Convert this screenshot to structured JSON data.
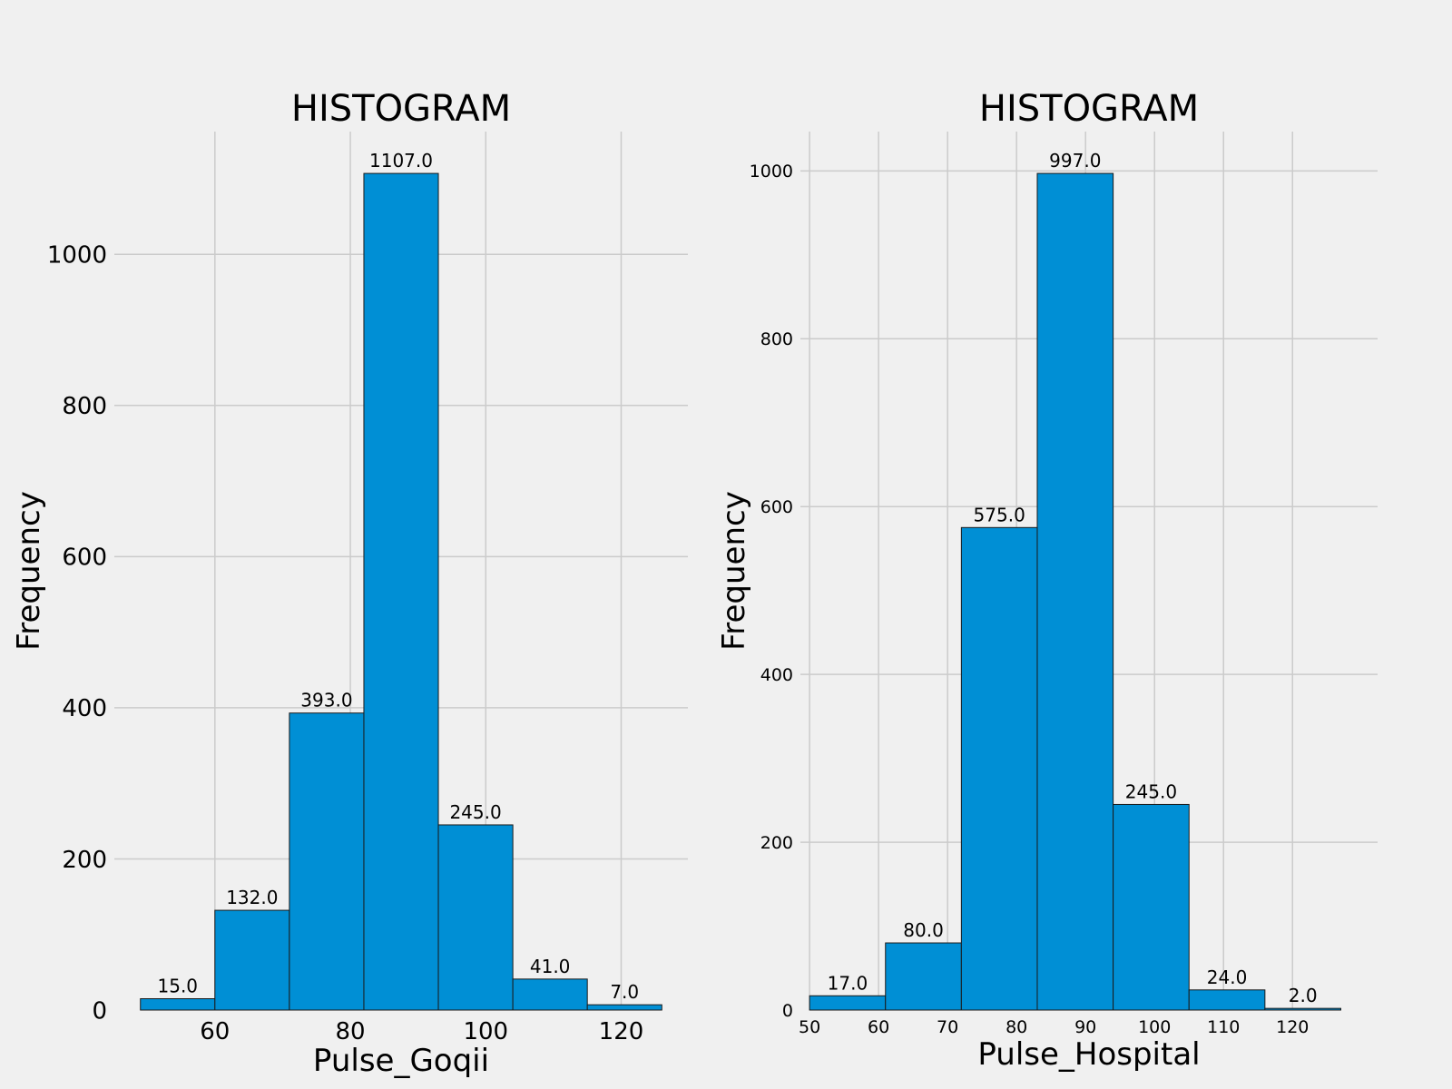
{
  "chart_data": [
    {
      "type": "bar",
      "title": "HISTOGRAM",
      "xlabel": "Pulse_Goqii",
      "ylabel": "Frequency",
      "bin_edges": [
        49,
        60,
        71,
        82,
        93,
        104,
        115,
        126
      ],
      "values": [
        15,
        132,
        393,
        1107,
        245,
        41,
        7
      ],
      "data_labels": [
        "15.0",
        "132.0",
        "393.0",
        "1107.0",
        "245.0",
        "41.0",
        "7.0"
      ],
      "x_ticks": [
        60,
        80,
        100,
        120
      ],
      "x_tick_labels": [
        "60",
        "80",
        "100",
        "120"
      ],
      "y_ticks": [
        0,
        200,
        400,
        600,
        800,
        1000
      ],
      "y_tick_labels": [
        "0",
        "200",
        "400",
        "600",
        "800",
        "1000"
      ],
      "xlim": [
        45.15,
        129.85
      ],
      "ylim": [
        0,
        1162.35
      ],
      "grid": true,
      "bar_color": "#008fd5"
    },
    {
      "type": "bar",
      "title": "HISTOGRAM",
      "xlabel": "Pulse_Hospital",
      "ylabel": "Frequency",
      "bin_edges": [
        50,
        61,
        72,
        83,
        94,
        105,
        116,
        127
      ],
      "values": [
        17,
        80,
        575,
        997,
        245,
        24,
        2
      ],
      "data_labels": [
        "17.0",
        "80.0",
        "575.0",
        "997.0",
        "245.0",
        "24.0",
        "2.0"
      ],
      "x_ticks": [
        50,
        60,
        70,
        80,
        90,
        100,
        110,
        120
      ],
      "x_tick_labels": [
        "50",
        "60",
        "70",
        "80",
        "90",
        "100",
        "110",
        "120"
      ],
      "y_ticks": [
        0,
        200,
        400,
        600,
        800,
        1000
      ],
      "y_tick_labels": [
        "0",
        "200",
        "400",
        "600",
        "800",
        "1000"
      ],
      "xlim": [
        48.67,
        132.33
      ],
      "ylim": [
        0,
        1046.85
      ],
      "grid": true,
      "bar_color": "#008fd5"
    }
  ]
}
